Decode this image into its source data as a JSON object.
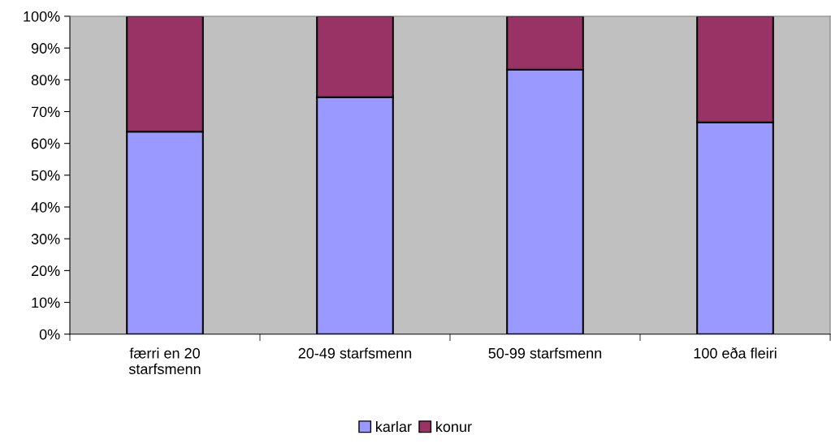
{
  "chart_data": {
    "type": "bar",
    "stacked": true,
    "categories": [
      "færri en 20\nstarfsmenn",
      "20-49 starfsmenn",
      "50-99 starfsmenn",
      "100 eða fleiri"
    ],
    "series": [
      {
        "name": "karlar",
        "color": "#9999ff",
        "values": [
          63.7,
          74.5,
          83.2,
          66.6
        ]
      },
      {
        "name": "konur",
        "color": "#993366",
        "values": [
          36.3,
          25.5,
          16.8,
          33.4
        ]
      }
    ],
    "ylim": [
      0,
      100
    ],
    "yticks": [
      {
        "value": 0,
        "label": "0%"
      },
      {
        "value": 10,
        "label": "10%"
      },
      {
        "value": 20,
        "label": "20%"
      },
      {
        "value": 30,
        "label": "30%"
      },
      {
        "value": 40,
        "label": "40%"
      },
      {
        "value": 50,
        "label": "50%"
      },
      {
        "value": 60,
        "label": "60%"
      },
      {
        "value": 70,
        "label": "70%"
      },
      {
        "value": 80,
        "label": "80%"
      },
      {
        "value": 90,
        "label": "90%"
      },
      {
        "value": 100,
        "label": "100%"
      }
    ],
    "grid": false,
    "legend": "bottom"
  }
}
